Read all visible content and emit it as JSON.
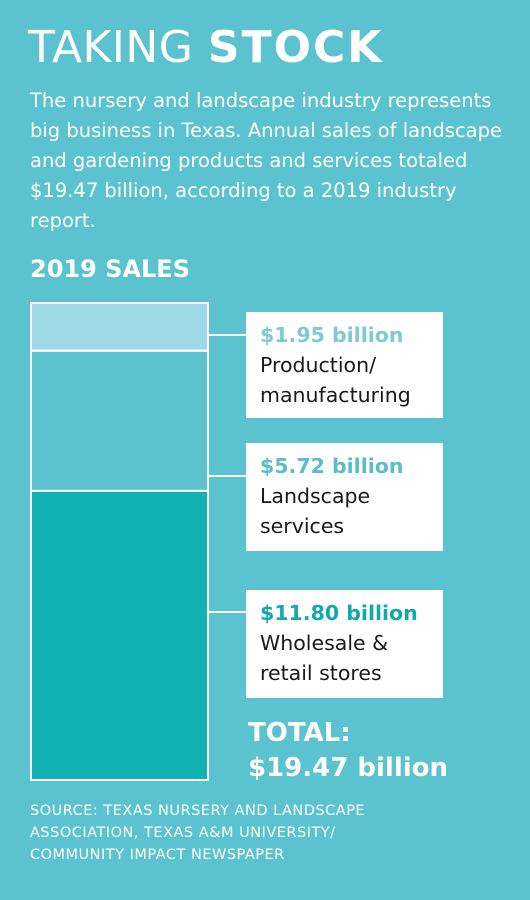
{
  "header": {
    "title_light": "TAKING",
    "title_bold": "STOCK",
    "intro": "The nursery and landscape industry represents big business in Texas. Annual sales of landscape and gardening products and services totaled $19.47 billion, according to a 2019 industry report."
  },
  "chart_data": {
    "type": "bar",
    "stacked": true,
    "title": "2019 SALES",
    "unit": "billion",
    "segments": [
      {
        "value": 1.95,
        "value_label": "$1.95 billion",
        "name": "Production/ manufacturing",
        "name_lines": [
          "Production/",
          "manufacturing"
        ],
        "fill": "#9fd8e6",
        "label_color": "#7fc9d8"
      },
      {
        "value": 5.72,
        "value_label": "$5.72 billion",
        "name": "Landscape services",
        "name_lines": [
          "Landscape",
          "services"
        ],
        "fill": "#5bc2cf",
        "label_color": "#5bbccb"
      },
      {
        "value": 11.8,
        "value_label": "$11.80 billion",
        "name": "Wholesale & retail stores",
        "name_lines": [
          "Wholesale &",
          "retail stores"
        ],
        "fill": "#12b2b4",
        "label_color": "#12a9ab"
      }
    ],
    "total_label": "TOTAL:",
    "total_value": "$19.47 billion"
  },
  "footer": {
    "source_lines": [
      "SOURCE: TEXAS NURSERY AND LANDSCAPE",
      "ASSOCIATION, TEXAS A&M UNIVERSITY/",
      "COMMUNITY IMPACT NEWSPAPER"
    ]
  }
}
